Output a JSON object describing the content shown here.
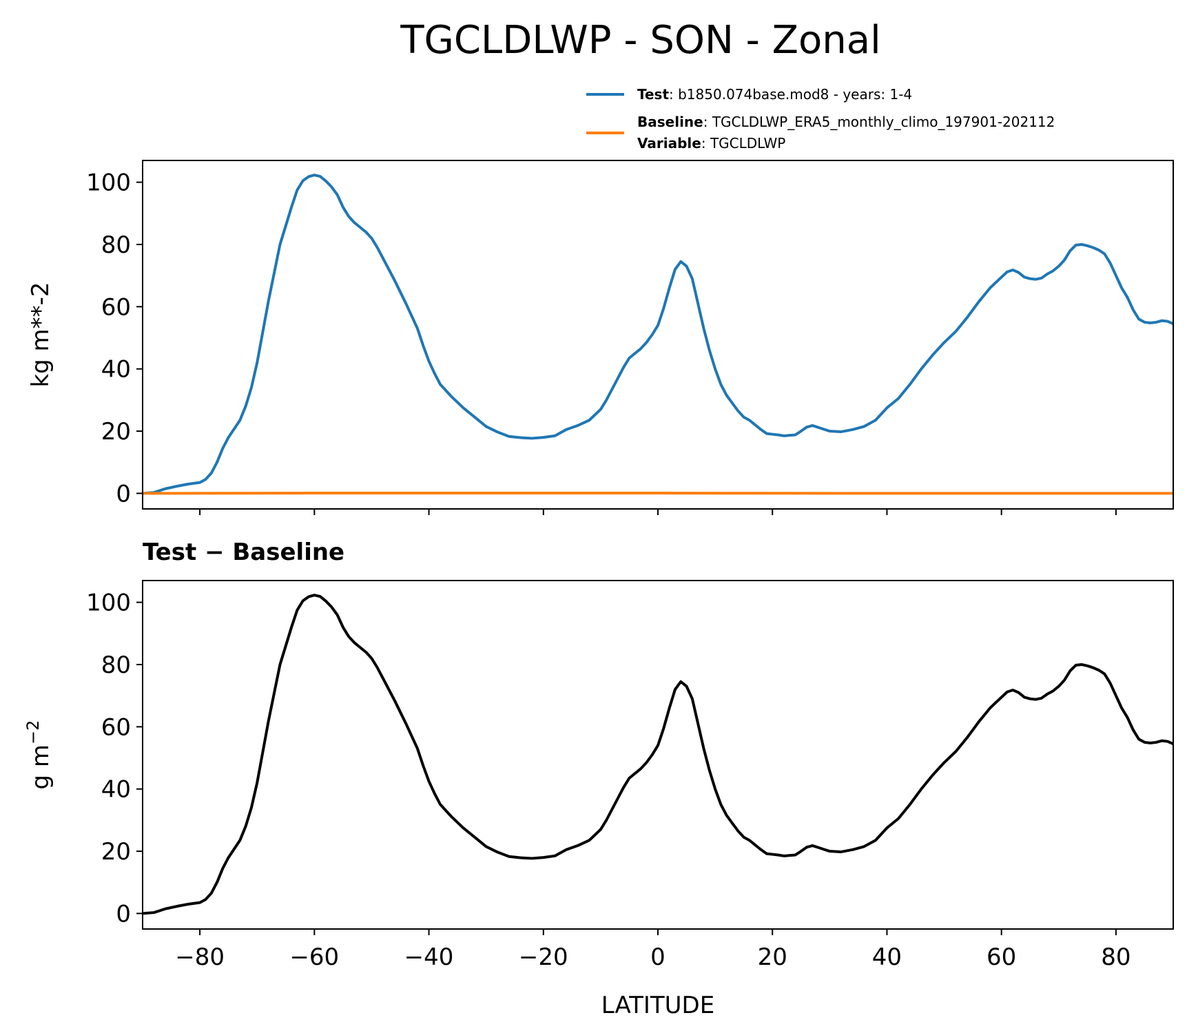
{
  "figure_title": "TGCLDLWP - SON - Zonal",
  "legend": {
    "test_key": "Test",
    "test_value": ": b1850.074base.mod8 - years: 1-4",
    "baseline_key": "Baseline",
    "baseline_value": ": TGCLDLWP_ERA5_monthly_climo_197901-202112",
    "variable_key": "Variable",
    "variable_value": ": TGCLDLWP"
  },
  "colors": {
    "test": "#1f77b4",
    "baseline": "#ff7f0e",
    "difference": "#000000"
  },
  "chart_data": [
    {
      "type": "line",
      "title": "",
      "xlabel": "",
      "ylabel": "kg m**-2",
      "xlim": [
        -90,
        90
      ],
      "ylim": [
        -5,
        107
      ],
      "xticks": [
        -80,
        -60,
        -40,
        -20,
        0,
        20,
        40,
        60,
        80
      ],
      "yticks": [
        0,
        20,
        40,
        60,
        80,
        100
      ],
      "ytick_labels": [
        "0",
        "20",
        "40",
        "60",
        "80",
        "100"
      ],
      "xtick_labels_visible": false,
      "grid": false,
      "legend_position": "above-right",
      "series": [
        {
          "name": "Test",
          "color": "#1f77b4",
          "x": [
            -90,
            -88,
            -86,
            -84,
            -82,
            -80,
            -79,
            -78,
            -77,
            -76,
            -75,
            -73,
            -72,
            -71,
            -70,
            -69,
            -68,
            -66,
            -64,
            -63,
            -62,
            -61,
            -60,
            -59,
            -58,
            -57,
            -56,
            -55,
            -54,
            -53,
            -52,
            -51,
            -50,
            -49,
            -48,
            -46,
            -44,
            -42,
            -41,
            -40,
            -39,
            -38,
            -36,
            -34,
            -32,
            -30,
            -28,
            -26,
            -24,
            -22,
            -20,
            -18,
            -16,
            -14,
            -12,
            -10,
            -9,
            -8,
            -7,
            -6,
            -5,
            -4,
            -3,
            -2,
            -1,
            0,
            1,
            2,
            3,
            4,
            5,
            6,
            7,
            8,
            9,
            10,
            11,
            12,
            13,
            14,
            15,
            16,
            17,
            18,
            19,
            20,
            21,
            22,
            24,
            25,
            26,
            27,
            28,
            29,
            30,
            32,
            34,
            36,
            38,
            39,
            40,
            42,
            44,
            46,
            48,
            50,
            52,
            54,
            56,
            58,
            60,
            61,
            62,
            63,
            64,
            65,
            66,
            67,
            68,
            69,
            70,
            71,
            72,
            73,
            74,
            75,
            76,
            77,
            78,
            79,
            80,
            81,
            82,
            83,
            84,
            85,
            86,
            87,
            88,
            89,
            90
          ],
          "y": [
            0,
            0.3,
            1.5,
            2.3,
            3.0,
            3.5,
            4.5,
            6.5,
            10,
            14.5,
            18,
            23.5,
            28,
            34,
            42,
            52,
            62,
            80,
            92,
            97.5,
            100.5,
            101.8,
            102.3,
            101.9,
            100.4,
            98.5,
            96,
            92,
            89,
            87,
            85.5,
            84,
            82,
            79,
            75.5,
            68.5,
            61,
            53,
            47.5,
            42.5,
            38.5,
            35,
            31,
            27.5,
            24.5,
            21.5,
            19.7,
            18.3,
            17.9,
            17.7,
            18.0,
            18.5,
            20.5,
            21.8,
            23.5,
            27,
            30,
            33.5,
            37,
            40.5,
            43.5,
            45,
            46.5,
            48.5,
            51,
            54,
            59.5,
            66,
            72,
            74.5,
            73,
            69,
            61,
            53,
            46,
            40,
            35,
            31.5,
            29,
            26.5,
            24.5,
            23.5,
            22,
            20.5,
            19.2,
            19.0,
            18.8,
            18.5,
            18.8,
            20,
            21.3,
            21.8,
            21.2,
            20.6,
            20.0,
            19.8,
            20.5,
            21.5,
            23.5,
            25.5,
            27.5,
            30.5,
            35,
            40,
            44.5,
            48.5,
            52,
            56.5,
            61.5,
            66,
            69.5,
            71.2,
            71.8,
            71,
            69.5,
            69,
            68.8,
            69.2,
            70.5,
            71.5,
            73,
            75,
            78,
            79.8,
            80,
            79.6,
            79,
            78.2,
            77,
            74,
            70,
            66,
            63,
            59,
            56,
            55,
            54.8,
            55,
            55.5,
            55.3,
            54.5
          ]
        },
        {
          "name": "Baseline",
          "color": "#ff7f0e",
          "x": [
            -90,
            -60,
            -30,
            0,
            30,
            60,
            90
          ],
          "y": [
            0,
            0.1,
            0.1,
            0.1,
            0.0,
            0.0,
            0.0
          ]
        }
      ]
    },
    {
      "type": "line",
      "title": "Test − Baseline",
      "xlabel": "LATITUDE",
      "ylabel": "g m^-2",
      "xlim": [
        -90,
        90
      ],
      "ylim": [
        -5,
        107
      ],
      "xticks": [
        -80,
        -60,
        -40,
        -20,
        0,
        20,
        40,
        60,
        80
      ],
      "xtick_labels": [
        "−80",
        "−60",
        "−40",
        "−20",
        "0",
        "20",
        "40",
        "60",
        "80"
      ],
      "yticks": [
        0,
        20,
        40,
        60,
        80,
        100
      ],
      "ytick_labels": [
        "0",
        "20",
        "40",
        "60",
        "80",
        "100"
      ],
      "grid": false,
      "series": [
        {
          "color": "#000000",
          "x": [
            -90,
            -88,
            -86,
            -84,
            -82,
            -80,
            -79,
            -78,
            -77,
            -76,
            -75,
            -73,
            -72,
            -71,
            -70,
            -69,
            -68,
            -66,
            -64,
            -63,
            -62,
            -61,
            -60,
            -59,
            -58,
            -57,
            -56,
            -55,
            -54,
            -53,
            -52,
            -51,
            -50,
            -49,
            -48,
            -46,
            -44,
            -42,
            -41,
            -40,
            -39,
            -38,
            -36,
            -34,
            -32,
            -30,
            -28,
            -26,
            -24,
            -22,
            -20,
            -18,
            -16,
            -14,
            -12,
            -10,
            -9,
            -8,
            -7,
            -6,
            -5,
            -4,
            -3,
            -2,
            -1,
            0,
            1,
            2,
            3,
            4,
            5,
            6,
            7,
            8,
            9,
            10,
            11,
            12,
            13,
            14,
            15,
            16,
            17,
            18,
            19,
            20,
            21,
            22,
            24,
            25,
            26,
            27,
            28,
            29,
            30,
            32,
            34,
            36,
            38,
            39,
            40,
            42,
            44,
            46,
            48,
            50,
            52,
            54,
            56,
            58,
            60,
            61,
            62,
            63,
            64,
            65,
            66,
            67,
            68,
            69,
            70,
            71,
            72,
            73,
            74,
            75,
            76,
            77,
            78,
            79,
            80,
            81,
            82,
            83,
            84,
            85,
            86,
            87,
            88,
            89,
            90
          ],
          "y": [
            0,
            0.3,
            1.5,
            2.3,
            3.0,
            3.5,
            4.5,
            6.5,
            10,
            14.5,
            18,
            23.5,
            28,
            34,
            42,
            52,
            62,
            80,
            92,
            97.5,
            100.5,
            101.8,
            102.3,
            101.9,
            100.4,
            98.5,
            96,
            92,
            89,
            87,
            85.5,
            84,
            82,
            79,
            75.5,
            68.5,
            61,
            53,
            47.5,
            42.5,
            38.5,
            35,
            31,
            27.5,
            24.5,
            21.5,
            19.7,
            18.3,
            17.9,
            17.7,
            18.0,
            18.5,
            20.5,
            21.8,
            23.5,
            27,
            30,
            33.5,
            37,
            40.5,
            43.5,
            45,
            46.5,
            48.5,
            51,
            54,
            59.5,
            66,
            72,
            74.5,
            73,
            69,
            61,
            53,
            46,
            40,
            35,
            31.5,
            29,
            26.5,
            24.5,
            23.5,
            22,
            20.5,
            19.2,
            19.0,
            18.8,
            18.5,
            18.8,
            20,
            21.3,
            21.8,
            21.2,
            20.6,
            20.0,
            19.8,
            20.5,
            21.5,
            23.5,
            25.5,
            27.5,
            30.5,
            35,
            40,
            44.5,
            48.5,
            52,
            56.5,
            61.5,
            66,
            69.5,
            71.2,
            71.8,
            71,
            69.5,
            69,
            68.8,
            69.2,
            70.5,
            71.5,
            73,
            75,
            78,
            79.8,
            80,
            79.6,
            79,
            78.2,
            77,
            74,
            70,
            66,
            63,
            59,
            56,
            55,
            54.8,
            55,
            55.5,
            55.3,
            54.5
          ]
        }
      ]
    }
  ]
}
